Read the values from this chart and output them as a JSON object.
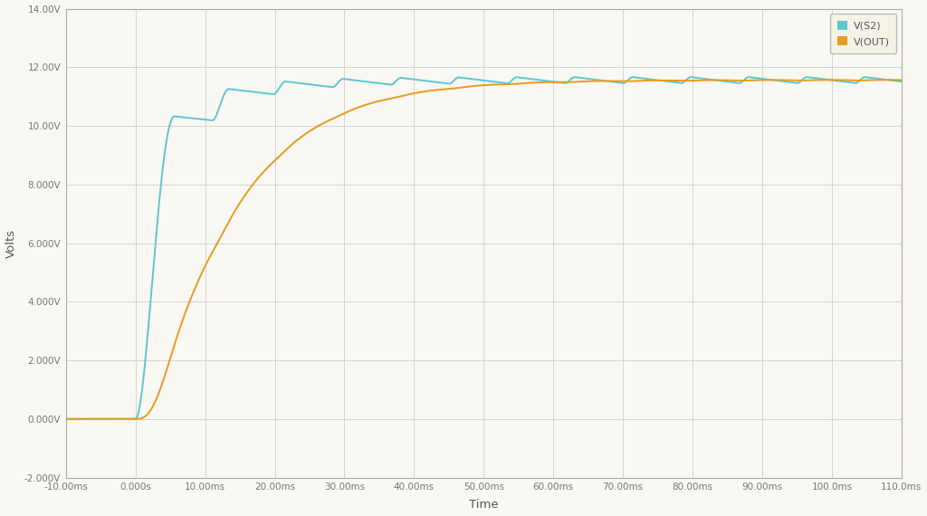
{
  "xlabel": "Time",
  "ylabel": "Volts",
  "xtick_labels": [
    "-10.00ms",
    "0.000s",
    "10.00ms",
    "20.00ms",
    "30.00ms",
    "40.00ms",
    "50.00ms",
    "60.00ms",
    "70.00ms",
    "80.00ms",
    "90.00ms",
    "100.0ms",
    "110.0ms"
  ],
  "ytick_labels": [
    "-2.000V",
    "0.000V",
    "2.000V",
    "4.000V",
    "6.000V",
    "8.000V",
    "10.00V",
    "12.00V",
    "14.00V"
  ],
  "color_v_s2": "#5BC8D0",
  "color_v_out": "#E89B20",
  "legend_labels": [
    "V(S2)",
    "V(OUT)"
  ],
  "background_color": "#FAF8F2",
  "grid_color": "#CCCCCC",
  "line_width": 1.4
}
